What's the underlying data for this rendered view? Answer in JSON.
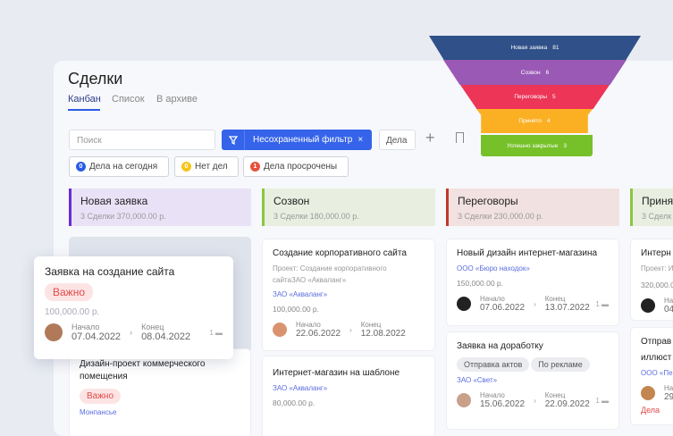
{
  "header": {
    "title": "Сделки",
    "tabs": [
      {
        "label": "Канбан",
        "active": true
      },
      {
        "label": "Список"
      },
      {
        "label": "В архиве"
      }
    ]
  },
  "toolbar": {
    "search_placeholder": "Поиск",
    "filter_label": "Несохраненный фильтр",
    "filter_close": "×",
    "dela_label": "Дела",
    "add": "+"
  },
  "chips": [
    {
      "count": "0",
      "label": "Дела на сегодня",
      "color": "#2b5ce6"
    },
    {
      "count": "0",
      "label": "Нет дел",
      "color": "#f5c518"
    },
    {
      "count": "1",
      "label": "Дела просрочены",
      "color": "#e5533d"
    }
  ],
  "columns": [
    {
      "name": "Новая заявка",
      "summary": "3 Сделки   370,000.00 р.",
      "color": "#6a2bd6",
      "bg": "#e9e2f7"
    },
    {
      "name": "Созвон",
      "summary": "3 Сделки   180,000.00 р.",
      "color": "#8cc63f",
      "bg": "#e8efe0"
    },
    {
      "name": "Переговоры",
      "summary": "3 Сделки   230,000.00 р.",
      "color": "#c0392b",
      "bg": "#f2e1e1"
    },
    {
      "name": "Приня",
      "summary": "3 Сделк",
      "color": "#8cc63f",
      "bg": "#e8efe0"
    }
  ],
  "cards": {
    "floating": {
      "title": "Заявка на создание сайта",
      "tag": "Важно",
      "amount": "100,000.00 р.",
      "start_label": "Начало",
      "start": "07.04.2022",
      "end_label": "Конец",
      "end": "08.04.2022",
      "comments": "1"
    },
    "col1_2": {
      "title1": "Дизайн-проект коммерческого",
      "title2": "помещения",
      "tag": "Важно",
      "link": "Монпансье"
    },
    "col2_1": {
      "title": "Создание корпоративного сайта",
      "project1": "Проект: Создание корпоративного",
      "project2": "сайтаЗАО «Акваланг»",
      "link": "ЗАО «Акваланг»",
      "amount": "100,000.00 р.",
      "start_label": "Начало",
      "start": "22.06.2022",
      "end_label": "Конец",
      "end": "12.08.2022"
    },
    "col2_2": {
      "title": "Интернет-магазин на шаблоне",
      "link": "ЗАО «Акваланг»",
      "amount": "80,000.00 р."
    },
    "col3_1": {
      "title": "Новый дизайн интернет-магазина",
      "link": "ООО «Бюро находок»",
      "amount": "150,000.00 р.",
      "start_label": "Начало",
      "start": "07.06.2022",
      "end_label": "Конец",
      "end": "13.07.2022",
      "comments": "1"
    },
    "col3_2": {
      "title": "Заявка на доработку",
      "tags": [
        "Отправка актов",
        "По рекламе"
      ],
      "link": "ЗАО «Свет»",
      "start_label": "Начало",
      "start": "15.06.2022",
      "end_label": "Конец",
      "end": "22.09.2022",
      "comments": "1"
    },
    "col4_1": {
      "title": "Интерн",
      "project": "Проект: И",
      "amount": "320,000.0",
      "start_label": "На",
      "start": "04"
    },
    "col4_2": {
      "title1": "Отправ",
      "title2": "иллюст",
      "link": "ООО «Пе",
      "start_label": "На",
      "start": "29",
      "extra": "Дела"
    }
  },
  "funnel": [
    {
      "label": "Новая заявка",
      "value": 81,
      "color": "#2f5088"
    },
    {
      "label": "Созвон",
      "value": 6,
      "color": "#9b59b6"
    },
    {
      "label": "Переговоры",
      "value": 5,
      "color": "#ec3557"
    },
    {
      "label": "Принято",
      "value": 4,
      "color": "#fbb024"
    },
    {
      "label": "Успешно закрытые",
      "value": 3,
      "color": "#76c12a"
    }
  ]
}
